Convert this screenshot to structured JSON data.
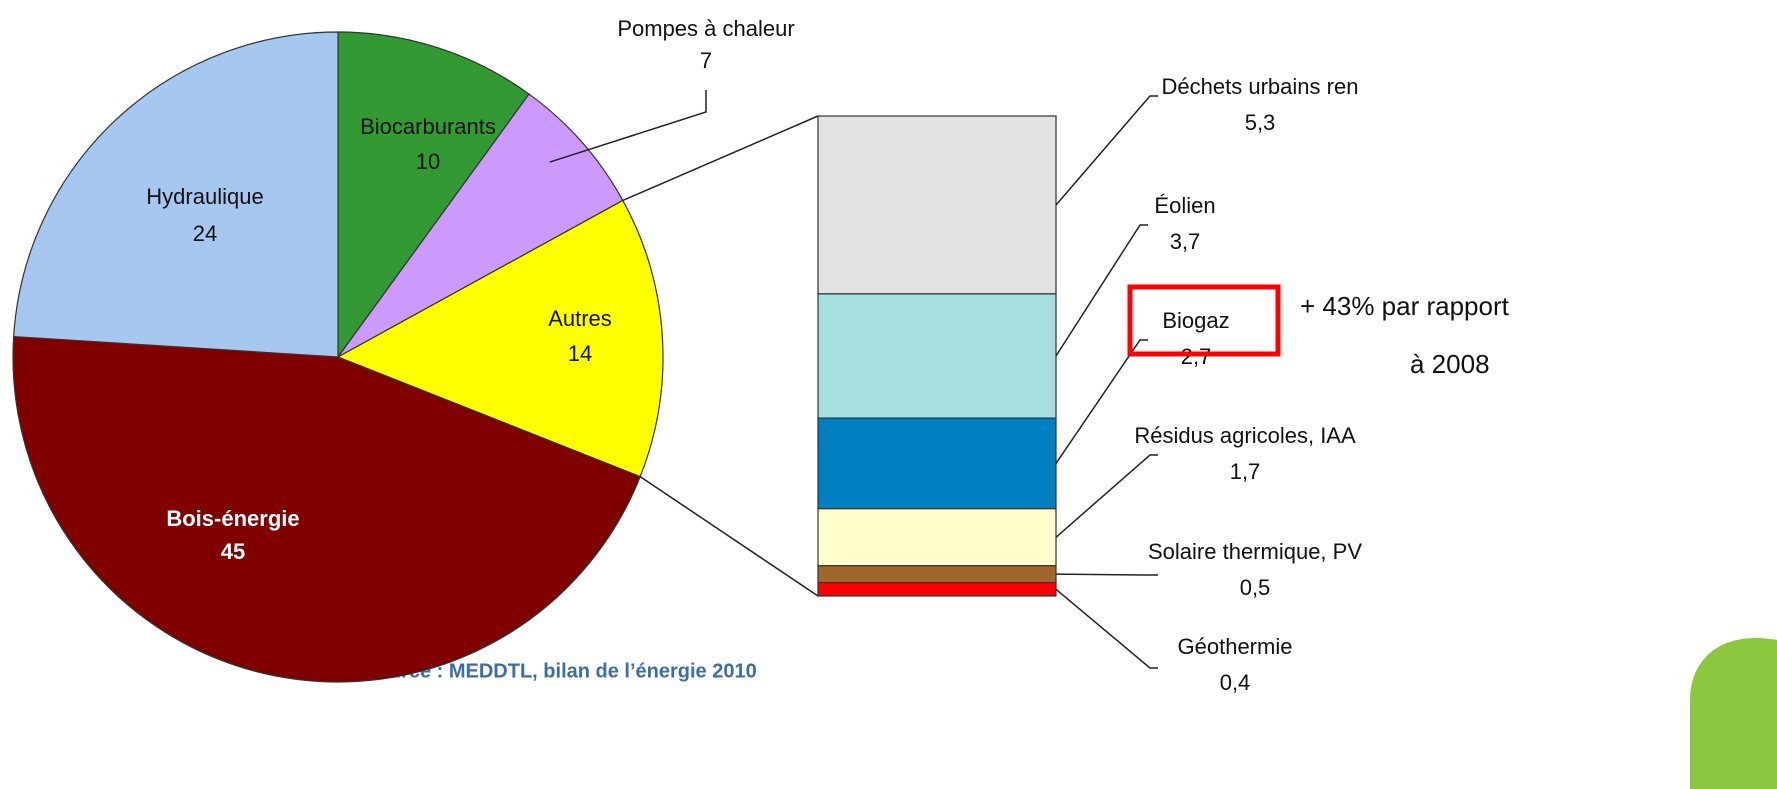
{
  "chart_data": [
    {
      "type": "pie",
      "categories": [
        "Biocarburants",
        "Pompes à chaleur",
        "Autres",
        "Bois-énergie",
        "Hydraulique"
      ],
      "values": [
        10,
        7,
        14,
        45,
        24
      ],
      "colors": [
        "#339933",
        "#cc99ff",
        "#ffff00",
        "#800000",
        "#a6c8f0"
      ]
    },
    {
      "type": "bar",
      "categories": [
        "Déchets urbains ren",
        "Éolien",
        "Biogaz",
        "Résidus agricoles, IAA",
        "Solaire thermique, PV",
        "Géothermie"
      ],
      "values": [
        5.3,
        3.7,
        2.7,
        1.7,
        0.5,
        0.4
      ],
      "value_labels": [
        "5,3",
        "3,7",
        "2,7",
        "1,7",
        "0,5",
        "0,4"
      ],
      "colors": [
        "#e3e3e3",
        "#a6dfe0",
        "#0080c0",
        "#ffffcc",
        "#a0672a",
        "#ff0000"
      ],
      "annotation": [
        "+ 43% par rapport",
        "à 2008"
      ]
    }
  ],
  "source": "Source : MEDDTL, bilan de l’énergie 2010"
}
